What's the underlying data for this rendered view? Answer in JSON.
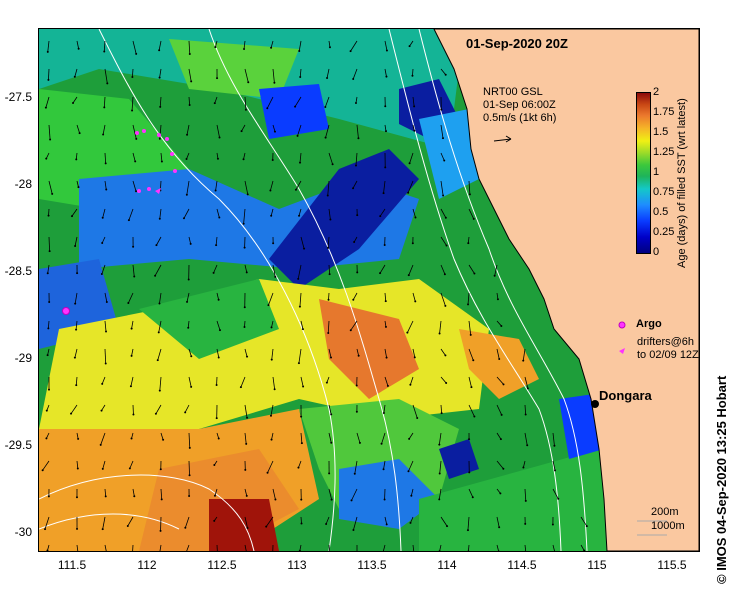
{
  "title": "01-Sep-2020 20Z",
  "vector_legend": {
    "line1": "NRT00 GSL",
    "line2": "01-Sep 06:00Z",
    "line3": "0.5m/s (1kt 6h)"
  },
  "colorbar": {
    "title": "Age (days) of filled SST (wrt latest)",
    "ticks": [
      "2",
      "1.75",
      "1.5",
      "1.25",
      "1",
      "0.75",
      "0.5",
      "0.25",
      "0"
    ]
  },
  "axes": {
    "lat_ticks": [
      "-27.5",
      "-28",
      "-28.5",
      "-29",
      "-29.5",
      "-30"
    ],
    "lon_ticks": [
      "111.5",
      "112",
      "112.5",
      "113",
      "113.5",
      "114",
      "114.5",
      "115",
      "115.5"
    ]
  },
  "markers": {
    "argo_label": "Argo",
    "drifters_label_1": "drifters@6h",
    "drifters_label_2": "to 02/09 12Z"
  },
  "place": {
    "name": "Dongara"
  },
  "scale": {
    "contour1": "200m",
    "contour2": "1000m"
  },
  "credit": "IMOS 04-Sep-2020 13:25 Hobart",
  "copyright_symbol": "©",
  "colors": {
    "land": "#fac8a0",
    "ocean_base": "#1e9e3a",
    "argo": "#ff33ff",
    "isobath": "#ffffff"
  }
}
